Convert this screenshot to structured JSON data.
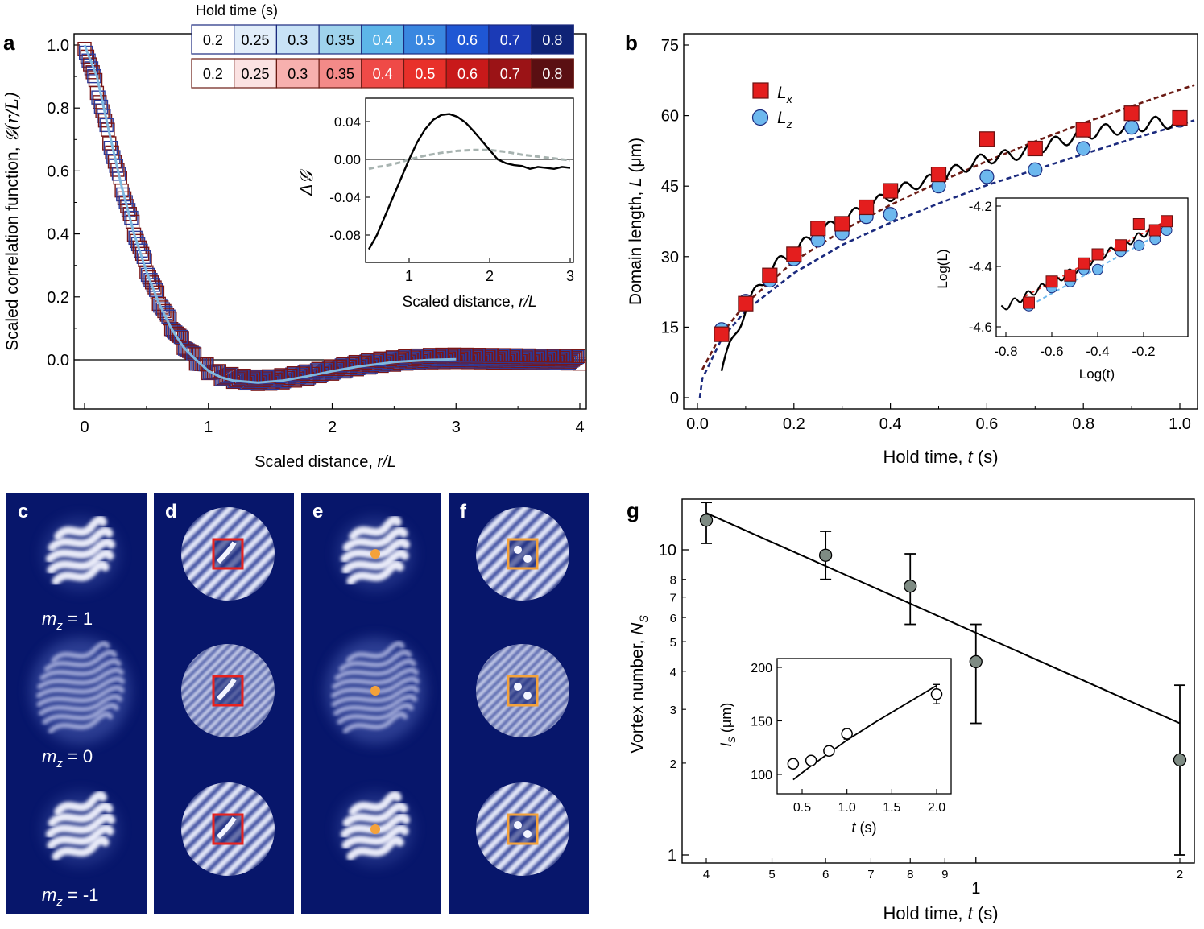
{
  "figure": {
    "panel_labels": {
      "a": "a",
      "b": "b",
      "c": "c",
      "d": "d",
      "e": "e",
      "f": "f",
      "g": "g"
    },
    "colors": {
      "blue_scale": [
        "#ffffff",
        "#e2eefa",
        "#c8e2f6",
        "#9fd3ec",
        "#5db5e8",
        "#3a87e0",
        "#1f57d4",
        "#1b3ab6",
        "#0f2376"
      ],
      "red_scale": [
        "#ffffff",
        "#fbe2e2",
        "#f7b0ae",
        "#f38a88",
        "#ef4a47",
        "#e8302a",
        "#c8191a",
        "#9b1316",
        "#5a0f12"
      ],
      "marker_red": "#e41e1e",
      "marker_blue": "#6db8ee",
      "fit_navy": "#1b2a7e",
      "fit_brown": "#6a1a13",
      "curve_blue": "#7fb8df",
      "dashed_grey": "#a7b3b0",
      "vortex_grey": "#7e8b83",
      "image_bg": "#07166b",
      "box_red": "#e8221e",
      "box_orange": "#f4a23a",
      "vortex_dot": "#f4a23a"
    }
  },
  "panel_a": {
    "legend_title": "Hold time (s)",
    "hold_times": [
      "0.2",
      "0.25",
      "0.3",
      "0.35",
      "0.4",
      "0.5",
      "0.6",
      "0.7",
      "0.8"
    ],
    "ylabel": "Scaled correlation function, ",
    "ylabel_math": "𝒢(r/L)",
    "xlabel": "Scaled distance, ",
    "xlabel_math": "r/L",
    "xticks": [
      "0",
      "1",
      "2",
      "3",
      "4"
    ],
    "yticks": [
      "0.0",
      "0.2",
      "0.4",
      "0.6",
      "0.8",
      "1.0"
    ],
    "inset": {
      "ylabel": "Δ𝒢",
      "xlabel": "Scaled distance, ",
      "xlabel_math": "r/L",
      "xticks": [
        "1",
        "2",
        "3"
      ],
      "yticks": [
        "0.04",
        "0.00",
        "-0.04",
        "-0.08"
      ]
    }
  },
  "panel_b": {
    "ylabel": "Domain length, ",
    "ylabel_var": "L",
    "ylabel_unit": " (μm)",
    "xlabel": "Hold time, ",
    "xlabel_var": "t",
    "xlabel_unit": " (s)",
    "xticks": [
      "0.0",
      "0.2",
      "0.4",
      "0.6",
      "0.8",
      "1.0"
    ],
    "yticks": [
      "0",
      "15",
      "30",
      "45",
      "60",
      "75"
    ],
    "legend": [
      {
        "sym": "L",
        "sub": "x"
      },
      {
        "sym": "L",
        "sub": "z"
      }
    ],
    "inset": {
      "ylabel": "Log(L)",
      "xlabel": "Log(t)",
      "xticks": [
        "-0.8",
        "-0.6",
        "-0.4",
        "-0.2"
      ],
      "yticks": [
        "-4.2",
        "-4.4",
        "-4.6"
      ]
    }
  },
  "panels_cf": {
    "mz_labels": [
      "m",
      "z",
      " = 1",
      "m",
      "z",
      " = 0",
      "m",
      "z",
      " = -1"
    ]
  },
  "panel_g": {
    "ylabel": "Vortex number, ",
    "ylabel_var": "N",
    "ylabel_sub": "S",
    "xlabel": "Hold time, ",
    "xlabel_var": "t",
    "xlabel_unit": " (s)",
    "yticks_major": [
      "10",
      "1"
    ],
    "yticks_minor": [
      "8",
      "7",
      "6",
      "5",
      "4",
      "3",
      "2"
    ],
    "xticks_minor": [
      "4",
      "5",
      "6",
      "7",
      "8",
      "9",
      "2"
    ],
    "xtick_major": "1",
    "inset": {
      "ylabel_var": "l",
      "ylabel_sub": "S",
      "ylabel_unit": " (μm)",
      "xlabel_var": "t",
      "xlabel_unit": " (s)",
      "xticks": [
        "0.5",
        "1.0",
        "1.5",
        "2.0"
      ],
      "yticks": [
        "200",
        "150",
        "100"
      ]
    }
  },
  "chart_data": [
    {
      "id": "a",
      "type": "scatter",
      "title": "",
      "xlabel": "Scaled distance, r/L",
      "ylabel": "Scaled correlation function, G(r/L)",
      "xlim": [
        -0.07,
        4.05
      ],
      "ylim": [
        -0.15,
        1.03
      ],
      "series": [
        {
          "name": "m_z = 1 (red, hold times 0.2–0.8 s)",
          "x": [
            0,
            0.05,
            0.1,
            0.15,
            0.2,
            0.25,
            0.3,
            0.35,
            0.4,
            0.45,
            0.5,
            0.55,
            0.6,
            0.65,
            0.7,
            0.8,
            0.9,
            1.0,
            1.1,
            1.2,
            1.3,
            1.4,
            1.5,
            1.6,
            1.8,
            2.0,
            2.2,
            2.4,
            2.6,
            2.8,
            3.0,
            3.2,
            3.4,
            3.6,
            3.8,
            4.0
          ],
          "y": [
            1.0,
            0.93,
            0.86,
            0.78,
            0.7,
            0.62,
            0.55,
            0.48,
            0.41,
            0.35,
            0.29,
            0.24,
            0.19,
            0.15,
            0.11,
            0.05,
            0.0,
            -0.03,
            -0.05,
            -0.058,
            -0.063,
            -0.065,
            -0.064,
            -0.06,
            -0.048,
            -0.032,
            -0.018,
            -0.007,
            0.0,
            0.004,
            0.005,
            0.004,
            0.003,
            0.002,
            0.001,
            0.0
          ]
        },
        {
          "name": "fit (light blue)",
          "x": [
            0,
            0.1,
            0.2,
            0.3,
            0.4,
            0.5,
            0.6,
            0.7,
            0.8,
            0.9,
            1.0,
            1.1,
            1.2,
            1.4,
            1.6,
            1.8,
            2.0,
            2.2,
            2.5,
            2.8,
            3.0
          ],
          "y": [
            1.0,
            0.9,
            0.72,
            0.55,
            0.4,
            0.28,
            0.18,
            0.1,
            0.04,
            0.0,
            -0.035,
            -0.055,
            -0.066,
            -0.072,
            -0.066,
            -0.052,
            -0.036,
            -0.022,
            -0.007,
            0.0,
            0.002
          ]
        }
      ],
      "inset": {
        "type": "line",
        "xlabel": "Scaled distance, r/L",
        "ylabel": "ΔG",
        "xlim": [
          0.5,
          3.0
        ],
        "ylim": [
          -0.1,
          0.06
        ],
        "series": [
          {
            "name": "solid",
            "x": [
              0.5,
              0.6,
              0.7,
              0.8,
              0.9,
              1.0,
              1.1,
              1.2,
              1.3,
              1.4,
              1.5,
              1.6,
              1.7,
              1.8,
              1.9,
              2.0,
              2.1,
              2.2,
              2.3,
              2.4,
              2.5,
              2.6,
              2.7,
              2.8,
              2.9,
              3.0
            ],
            "y": [
              -0.095,
              -0.08,
              -0.06,
              -0.04,
              -0.02,
              0.0,
              0.018,
              0.032,
              0.042,
              0.047,
              0.048,
              0.045,
              0.039,
              0.03,
              0.02,
              0.01,
              0.0,
              -0.004,
              -0.006,
              -0.007,
              -0.01,
              -0.008,
              -0.009,
              -0.01,
              -0.008,
              -0.009
            ]
          },
          {
            "name": "dashed",
            "x": [
              0.5,
              0.6,
              0.7,
              0.8,
              0.9,
              1.0,
              1.2,
              1.4,
              1.6,
              1.8,
              2.0,
              2.2,
              2.4,
              2.6,
              2.8,
              3.0
            ],
            "y": [
              -0.01,
              -0.008,
              -0.007,
              -0.005,
              -0.003,
              0.0,
              0.004,
              0.007,
              0.009,
              0.01,
              0.01,
              0.008,
              0.005,
              0.003,
              0.001,
              -0.001
            ]
          }
        ]
      }
    },
    {
      "id": "b",
      "type": "scatter",
      "xlabel": "Hold time, t (s)",
      "ylabel": "Domain length, L (μm)",
      "xlim": [
        -0.02,
        1.02
      ],
      "ylim": [
        -2,
        77
      ],
      "series": [
        {
          "name": "L_x",
          "x": [
            0.05,
            0.1,
            0.15,
            0.2,
            0.25,
            0.3,
            0.35,
            0.4,
            0.5,
            0.6,
            0.7,
            0.8,
            0.9,
            1.0
          ],
          "y": [
            13.5,
            20,
            26,
            30.5,
            36,
            37,
            40.5,
            44,
            47.5,
            55,
            53,
            57,
            60.5,
            59.5
          ]
        },
        {
          "name": "L_z",
          "x": [
            0.05,
            0.1,
            0.15,
            0.2,
            0.25,
            0.3,
            0.35,
            0.4,
            0.5,
            0.6,
            0.7,
            0.8,
            0.9,
            1.0
          ],
          "y": [
            14.5,
            20.5,
            25,
            29.5,
            33.5,
            35,
            38.5,
            39,
            45,
            47,
            48.5,
            53,
            57.5,
            59
          ]
        },
        {
          "name": "power-law fit L_x (dashed brown)",
          "x": [
            0.01,
            0.05,
            0.1,
            0.2,
            0.3,
            0.4,
            0.5,
            0.6,
            0.7,
            0.8,
            0.9,
            1.0,
            1.03
          ],
          "y": [
            6,
            13.6,
            20,
            29,
            35.5,
            41,
            45.8,
            50.3,
            54.5,
            58.4,
            62,
            65.5,
            66.5
          ]
        },
        {
          "name": "power-law fit L_z (dashed navy)",
          "x": [
            0.005,
            0.01,
            0.05,
            0.1,
            0.2,
            0.3,
            0.4,
            0.5,
            0.6,
            0.7,
            0.8,
            0.9,
            1.0,
            1.03
          ],
          "y": [
            0,
            4,
            12.5,
            18.5,
            26.5,
            32.5,
            37.2,
            41.3,
            45.2,
            48.5,
            51.8,
            55,
            58,
            59
          ]
        },
        {
          "name": "simulation (solid black)",
          "x": [
            0.05,
            0.08,
            0.1,
            0.13,
            0.16,
            0.2,
            0.25,
            0.3,
            0.35,
            0.4,
            0.45,
            0.5,
            0.55,
            0.6,
            0.65,
            0.7,
            0.75,
            0.8,
            0.85,
            0.9,
            0.95,
            1.0
          ],
          "y": [
            6,
            14,
            19,
            24,
            28,
            31,
            35,
            37.5,
            40.5,
            43,
            45.5,
            46.5,
            49,
            51,
            51.5,
            53,
            54.5,
            56,
            57,
            57.5,
            58.5,
            58.5
          ]
        }
      ],
      "inset": {
        "type": "scatter",
        "xlabel": "Log(t)",
        "ylabel": "Log(L)",
        "xlim": [
          -0.85,
          -0.05
        ],
        "ylim": [
          -4.62,
          -4.18
        ],
        "series": [
          {
            "name": "L_x",
            "x": [
              -0.7,
              -0.6,
              -0.52,
              -0.46,
              -0.4,
              -0.3,
              -0.22,
              -0.15,
              -0.1
            ],
            "y": [
              -4.52,
              -4.45,
              -4.43,
              -4.39,
              -4.36,
              -4.33,
              -4.26,
              -4.28,
              -4.25
            ]
          },
          {
            "name": "L_z",
            "x": [
              -0.7,
              -0.6,
              -0.52,
              -0.46,
              -0.4,
              -0.3,
              -0.22,
              -0.15,
              -0.1
            ],
            "y": [
              -4.53,
              -4.47,
              -4.45,
              -4.41,
              -4.41,
              -4.35,
              -4.33,
              -4.31,
              -4.28
            ]
          }
        ]
      }
    },
    {
      "id": "g",
      "type": "scatter",
      "xlabel": "Hold time, t (s)",
      "ylabel": "Vortex number, N_S",
      "xscale": "log",
      "yscale": "log",
      "xlim": [
        0.37,
        2.05
      ],
      "ylim": [
        0.9,
        16
      ],
      "series": [
        {
          "name": "N_S",
          "x": [
            0.4,
            0.6,
            0.8,
            1.0,
            2.0
          ],
          "y": [
            12.5,
            9.6,
            7.6,
            4.3,
            2.05
          ],
          "yerr_low": [
            2.0,
            1.6,
            1.9,
            1.6,
            1.05
          ],
          "yerr_high": [
            1.8,
            1.9,
            2.1,
            1.4,
            1.55
          ]
        },
        {
          "name": "fit",
          "x": [
            0.4,
            2.0
          ],
          "y": [
            13.2,
            2.7
          ]
        }
      ],
      "inset": {
        "type": "scatter",
        "xlabel": "t (s)",
        "ylabel": "l_S (μm)",
        "xlim": [
          0.3,
          2.1
        ],
        "ylim": [
          88,
          205
        ],
        "series": [
          {
            "name": "l_S",
            "x": [
              0.4,
              0.6,
              0.8,
              1.0,
              2.0
            ],
            "y": [
              110,
              113,
              122,
              138,
              175
            ],
            "yerr": [
              0,
              0,
              0,
              5,
              9
            ]
          },
          {
            "name": "fit",
            "x": [
              0.4,
              0.6,
              0.8,
              1.0,
              1.3,
              1.6,
              2.0
            ],
            "y": [
              95,
              108,
              120,
              132,
              148,
              163,
              183
            ]
          }
        ]
      }
    }
  ]
}
